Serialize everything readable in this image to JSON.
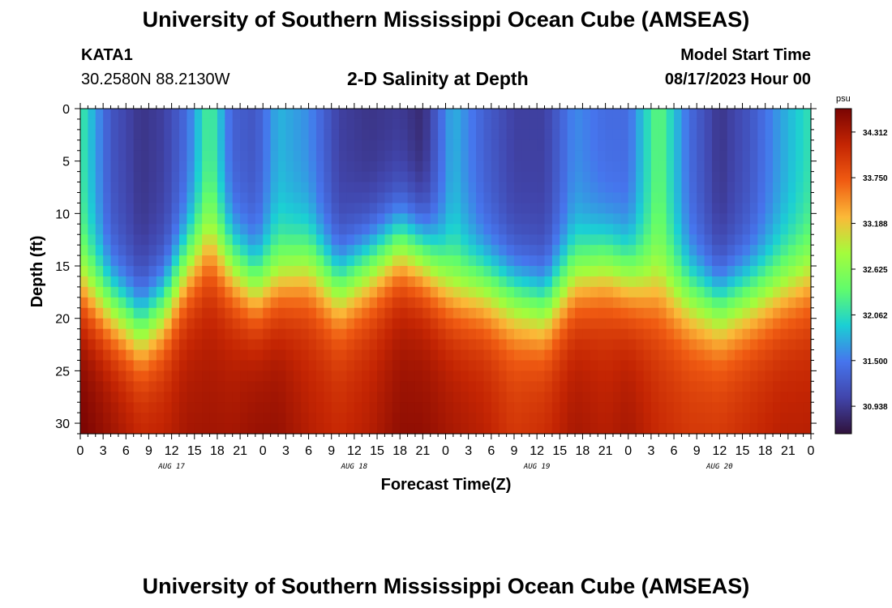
{
  "header": {
    "title": "University of Southern Mississippi Ocean Cube (AMSEAS)",
    "station_name": "KATA1",
    "station_coords": "30.2580N  88.2130W",
    "subtitle": "2-D Salinity at Depth",
    "start_label": "Model Start Time",
    "start_value": "08/17/2023 Hour 00"
  },
  "footer": {
    "title": "University of Southern Mississippi Ocean Cube (AMSEAS)"
  },
  "chart_data": {
    "type": "heatmap",
    "title": "2-D Salinity at Depth",
    "xlabel": "Forecast Time(Z)",
    "ylabel": "Depth (ft)",
    "x_range_hours": [
      0,
      96
    ],
    "x_tick_step_hours": 3,
    "x_tick_labels": [
      "0",
      "3",
      "6",
      "9",
      "12",
      "15",
      "18",
      "21",
      "0",
      "3",
      "6",
      "9",
      "12",
      "15",
      "18",
      "21",
      "0",
      "3",
      "6",
      "9",
      "12",
      "15",
      "18",
      "21",
      "0",
      "3",
      "6",
      "9",
      "12",
      "15",
      "18",
      "21",
      "0"
    ],
    "day_labels": [
      {
        "label": "AUG 17",
        "hour": 12
      },
      {
        "label": "AUG 18",
        "hour": 36
      },
      {
        "label": "AUG 19",
        "hour": 60
      },
      {
        "label": "AUG 20",
        "hour": 84
      }
    ],
    "y_range_ft": [
      0,
      31
    ],
    "y_ticks": [
      "0",
      "5",
      "10",
      "15",
      "20",
      "25",
      "30"
    ],
    "colorbar": {
      "unit": "psu",
      "min": 30.6,
      "max": 34.6,
      "tick_values": [
        30.938,
        31.5,
        32.062,
        32.625,
        33.188,
        33.75,
        34.312
      ],
      "tick_labels": [
        "30.938",
        "31.500",
        "32.062",
        "32.625",
        "33.188",
        "33.750",
        "34.312"
      ],
      "colors": [
        "#30123b",
        "#4145ab",
        "#4675ed",
        "#1bcfd4",
        "#61fc6c",
        "#a4fc3c",
        "#fbb938",
        "#f05b12",
        "#c42503",
        "#7a0403"
      ]
    },
    "salinity_profiles": [
      {
        "hour": 0,
        "halocline_ft": 17,
        "surface_psu": 32.2,
        "bottom_psu": 34.5
      },
      {
        "hour": 4,
        "halocline_ft": 19,
        "surface_psu": 31.2,
        "bottom_psu": 34.3
      },
      {
        "hour": 8,
        "halocline_ft": 21,
        "surface_psu": 30.9,
        "bottom_psu": 34.1
      },
      {
        "hour": 11,
        "halocline_ft": 19,
        "surface_psu": 31.0,
        "bottom_psu": 34.1
      },
      {
        "hour": 14,
        "halocline_ft": 15,
        "surface_psu": 31.4,
        "bottom_psu": 34.2
      },
      {
        "hour": 17,
        "halocline_ft": 13,
        "surface_psu": 32.3,
        "bottom_psu": 34.2
      },
      {
        "hour": 20,
        "halocline_ft": 15,
        "surface_psu": 31.3,
        "bottom_psu": 34.2
      },
      {
        "hour": 23,
        "halocline_ft": 17,
        "surface_psu": 31.2,
        "bottom_psu": 34.3
      },
      {
        "hour": 26,
        "halocline_ft": 16,
        "surface_psu": 31.8,
        "bottom_psu": 34.3
      },
      {
        "hour": 30,
        "halocline_ft": 15,
        "surface_psu": 31.6,
        "bottom_psu": 34.1
      },
      {
        "hour": 34,
        "halocline_ft": 17,
        "surface_psu": 31.0,
        "bottom_psu": 34.0
      },
      {
        "hour": 38,
        "halocline_ft": 15,
        "surface_psu": 30.9,
        "bottom_psu": 34.1
      },
      {
        "hour": 42,
        "halocline_ft": 13,
        "surface_psu": 30.95,
        "bottom_psu": 34.3
      },
      {
        "hour": 45,
        "halocline_ft": 14,
        "surface_psu": 30.8,
        "bottom_psu": 34.3
      },
      {
        "hour": 49,
        "halocline_ft": 17,
        "surface_psu": 31.8,
        "bottom_psu": 34.2
      },
      {
        "hour": 53,
        "halocline_ft": 17,
        "surface_psu": 31.3,
        "bottom_psu": 34.1
      },
      {
        "hour": 57,
        "halocline_ft": 18,
        "surface_psu": 31.0,
        "bottom_psu": 33.9
      },
      {
        "hour": 61,
        "halocline_ft": 19,
        "surface_psu": 31.0,
        "bottom_psu": 34.0
      },
      {
        "hour": 65,
        "halocline_ft": 16,
        "surface_psu": 31.6,
        "bottom_psu": 34.2
      },
      {
        "hour": 69,
        "halocline_ft": 15,
        "surface_psu": 31.4,
        "bottom_psu": 34.1
      },
      {
        "hour": 72,
        "halocline_ft": 16,
        "surface_psu": 31.4,
        "bottom_psu": 34.2
      },
      {
        "hour": 76,
        "halocline_ft": 17,
        "surface_psu": 32.4,
        "bottom_psu": 34.0
      },
      {
        "hour": 80,
        "halocline_ft": 18,
        "surface_psu": 31.4,
        "bottom_psu": 33.9
      },
      {
        "hour": 84,
        "halocline_ft": 19,
        "surface_psu": 30.9,
        "bottom_psu": 33.9
      },
      {
        "hour": 88,
        "halocline_ft": 18,
        "surface_psu": 31.2,
        "bottom_psu": 34.0
      },
      {
        "hour": 92,
        "halocline_ft": 17,
        "surface_psu": 31.7,
        "bottom_psu": 34.1
      },
      {
        "hour": 96,
        "halocline_ft": 16,
        "surface_psu": 32.1,
        "bottom_psu": 34.1
      }
    ]
  }
}
